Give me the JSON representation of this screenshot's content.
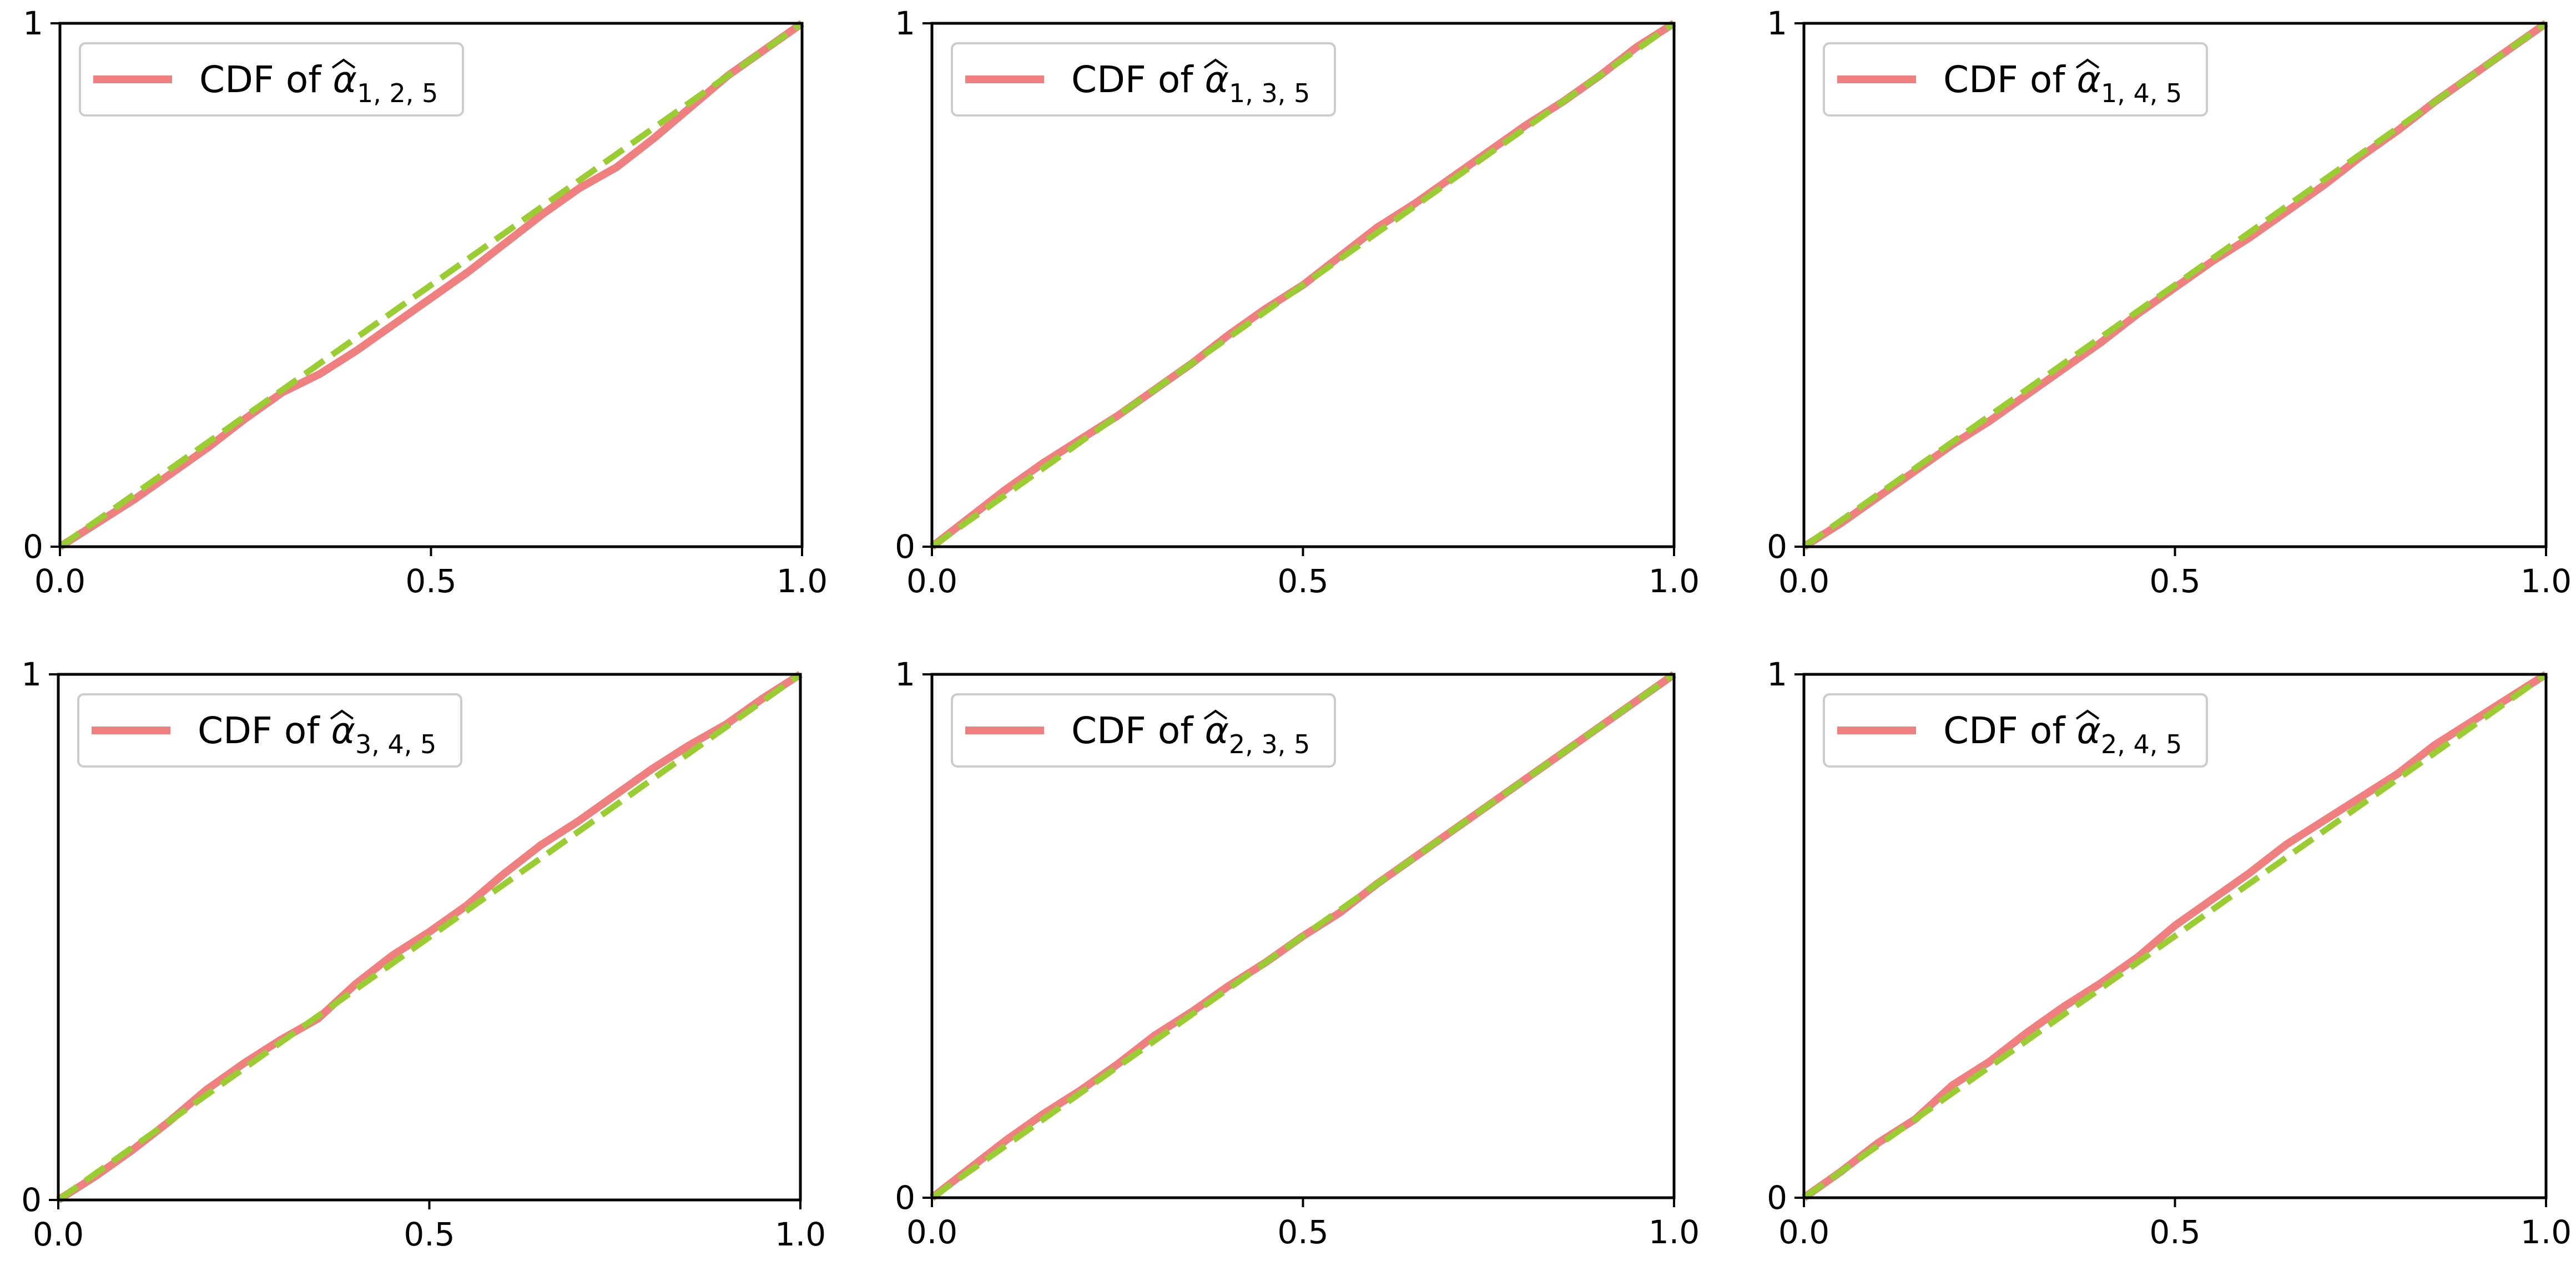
{
  "colors": {
    "cdf_line": "#f08080",
    "reference_line": "#9acd32",
    "axes": "#000000",
    "legend_border": "#cccccc"
  },
  "chart_data": [
    {
      "type": "line",
      "legend_placement": "upper-left",
      "legend": {
        "prefix": "CDF of",
        "symbol": "α",
        "subscript": "1, 2, 5"
      },
      "xlim": [
        0,
        1
      ],
      "ylim": [
        0,
        1
      ],
      "xticks": [
        "0.0",
        "0.5",
        "1.0"
      ],
      "yticks": [
        "0",
        "1"
      ],
      "grid": false,
      "series": [
        {
          "style": "solid",
          "color": "#f08080",
          "x": [
            0,
            0.05,
            0.1,
            0.15,
            0.2,
            0.25,
            0.3,
            0.35,
            0.4,
            0.45,
            0.5,
            0.55,
            0.6,
            0.65,
            0.7,
            0.75,
            0.8,
            0.85,
            0.9,
            0.95,
            1
          ],
          "y": [
            0,
            0.045,
            0.09,
            0.14,
            0.19,
            0.245,
            0.295,
            0.33,
            0.375,
            0.425,
            0.475,
            0.525,
            0.58,
            0.635,
            0.685,
            0.725,
            0.78,
            0.84,
            0.9,
            0.95,
            1
          ]
        },
        {
          "style": "dashed",
          "color": "#9acd32",
          "x": [
            0,
            1
          ],
          "y": [
            0,
            1
          ]
        }
      ]
    },
    {
      "type": "line",
      "legend_placement": "upper-left",
      "legend": {
        "prefix": "CDF of",
        "symbol": "α",
        "subscript": "1, 3, 5"
      },
      "xlim": [
        0,
        1
      ],
      "ylim": [
        0,
        1
      ],
      "xticks": [
        "0.0",
        "0.5",
        "1.0"
      ],
      "yticks": [
        "0",
        "1"
      ],
      "grid": false,
      "series": [
        {
          "style": "solid",
          "color": "#f08080",
          "x": [
            0,
            0.05,
            0.1,
            0.15,
            0.2,
            0.25,
            0.3,
            0.35,
            0.4,
            0.45,
            0.5,
            0.55,
            0.6,
            0.65,
            0.7,
            0.75,
            0.8,
            0.85,
            0.9,
            0.95,
            1
          ],
          "y": [
            0,
            0.055,
            0.11,
            0.16,
            0.205,
            0.25,
            0.3,
            0.35,
            0.405,
            0.455,
            0.5,
            0.555,
            0.61,
            0.655,
            0.705,
            0.755,
            0.805,
            0.85,
            0.9,
            0.955,
            1
          ]
        },
        {
          "style": "dashed",
          "color": "#9acd32",
          "x": [
            0,
            1
          ],
          "y": [
            0,
            1
          ]
        }
      ]
    },
    {
      "type": "line",
      "legend_placement": "upper-left",
      "legend": {
        "prefix": "CDF of",
        "symbol": "α",
        "subscript": "1, 4, 5"
      },
      "xlim": [
        0,
        1
      ],
      "ylim": [
        0,
        1
      ],
      "xticks": [
        "0.0",
        "0.5",
        "1.0"
      ],
      "yticks": [
        "0",
        "1"
      ],
      "grid": false,
      "series": [
        {
          "style": "solid",
          "color": "#f08080",
          "x": [
            0,
            0.05,
            0.1,
            0.15,
            0.2,
            0.25,
            0.3,
            0.35,
            0.4,
            0.45,
            0.5,
            0.55,
            0.6,
            0.65,
            0.7,
            0.75,
            0.8,
            0.85,
            0.9,
            0.95,
            1
          ],
          "y": [
            0,
            0.045,
            0.095,
            0.145,
            0.195,
            0.24,
            0.29,
            0.34,
            0.39,
            0.445,
            0.495,
            0.545,
            0.59,
            0.64,
            0.69,
            0.745,
            0.795,
            0.85,
            0.9,
            0.95,
            1
          ]
        },
        {
          "style": "dashed",
          "color": "#9acd32",
          "x": [
            0,
            1
          ],
          "y": [
            0,
            1
          ]
        }
      ]
    },
    {
      "type": "line",
      "legend_placement": "upper-left",
      "legend": {
        "prefix": "CDF of",
        "symbol": "α",
        "subscript": "3, 4, 5"
      },
      "xlim": [
        0,
        1
      ],
      "ylim": [
        0,
        1
      ],
      "xticks": [
        "0.0",
        "0.5",
        "1.0"
      ],
      "yticks": [
        "0",
        "1"
      ],
      "grid": false,
      "series": [
        {
          "style": "solid",
          "color": "#f08080",
          "x": [
            0,
            0.05,
            0.1,
            0.15,
            0.2,
            0.25,
            0.3,
            0.35,
            0.4,
            0.45,
            0.5,
            0.55,
            0.6,
            0.65,
            0.7,
            0.75,
            0.8,
            0.85,
            0.9,
            0.95,
            1
          ],
          "y": [
            0,
            0.045,
            0.095,
            0.15,
            0.21,
            0.26,
            0.305,
            0.345,
            0.41,
            0.465,
            0.51,
            0.56,
            0.62,
            0.675,
            0.72,
            0.77,
            0.82,
            0.865,
            0.905,
            0.955,
            1
          ]
        },
        {
          "style": "dashed",
          "color": "#9acd32",
          "x": [
            0,
            1
          ],
          "y": [
            0,
            1
          ]
        }
      ]
    },
    {
      "type": "line",
      "legend_placement": "upper-left",
      "legend": {
        "prefix": "CDF of",
        "symbol": "α",
        "subscript": "2, 3, 5"
      },
      "xlim": [
        0,
        1
      ],
      "ylim": [
        0,
        1
      ],
      "xticks": [
        "0.0",
        "0.5",
        "1.0"
      ],
      "yticks": [
        "0",
        "1"
      ],
      "grid": false,
      "series": [
        {
          "style": "solid",
          "color": "#f08080",
          "x": [
            0,
            0.05,
            0.1,
            0.15,
            0.2,
            0.25,
            0.3,
            0.35,
            0.4,
            0.45,
            0.5,
            0.55,
            0.6,
            0.65,
            0.7,
            0.75,
            0.8,
            0.85,
            0.9,
            0.95,
            1
          ],
          "y": [
            0,
            0.055,
            0.11,
            0.16,
            0.205,
            0.255,
            0.31,
            0.355,
            0.405,
            0.45,
            0.5,
            0.545,
            0.6,
            0.65,
            0.7,
            0.75,
            0.8,
            0.85,
            0.9,
            0.95,
            1
          ]
        },
        {
          "style": "dashed",
          "color": "#9acd32",
          "x": [
            0,
            1
          ],
          "y": [
            0,
            1
          ]
        }
      ]
    },
    {
      "type": "line",
      "legend_placement": "upper-left",
      "legend": {
        "prefix": "CDF of",
        "symbol": "α",
        "subscript": "2, 4, 5"
      },
      "xlim": [
        0,
        1
      ],
      "ylim": [
        0,
        1
      ],
      "xticks": [
        "0.0",
        "0.5",
        "1.0"
      ],
      "yticks": [
        "0",
        "1"
      ],
      "grid": false,
      "series": [
        {
          "style": "solid",
          "color": "#f08080",
          "x": [
            0,
            0.05,
            0.1,
            0.15,
            0.2,
            0.25,
            0.3,
            0.35,
            0.4,
            0.45,
            0.5,
            0.55,
            0.6,
            0.65,
            0.7,
            0.75,
            0.8,
            0.85,
            0.9,
            0.95,
            1
          ],
          "y": [
            0,
            0.05,
            0.105,
            0.15,
            0.215,
            0.26,
            0.315,
            0.365,
            0.41,
            0.46,
            0.52,
            0.57,
            0.62,
            0.675,
            0.72,
            0.765,
            0.81,
            0.865,
            0.91,
            0.955,
            1
          ]
        },
        {
          "style": "dashed",
          "color": "#9acd32",
          "x": [
            0,
            1
          ],
          "y": [
            0,
            1
          ]
        }
      ]
    }
  ]
}
